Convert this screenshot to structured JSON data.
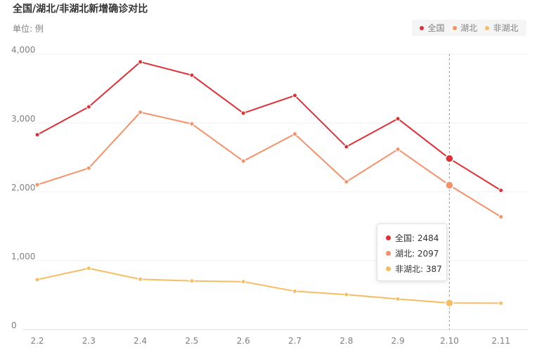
{
  "title": "全国/湖北/非湖北新增确诊对比",
  "unit_label": "单位: 例",
  "colors": {
    "national": "#e02f35",
    "hubei": "#f5926a",
    "non_hubei": "#f7bd63"
  },
  "tooltip": {
    "category": "2.10",
    "rows": [
      {
        "label": "全国: 2484"
      },
      {
        "label": "湖北: 2097"
      },
      {
        "label": "非湖北: 387"
      }
    ]
  },
  "chart_data": {
    "type": "line",
    "title": "全国/湖北/非湖北新增确诊对比",
    "ylabel": "单位: 例",
    "categories": [
      "2.2",
      "2.3",
      "2.4",
      "2.5",
      "2.6",
      "2.7",
      "2.8",
      "2.9",
      "2.10",
      "2.11"
    ],
    "ylim": [
      0,
      4000
    ],
    "yticks": [
      "0",
      "1,000",
      "2,000",
      "3,000",
      "4,000"
    ],
    "grid": true,
    "legend": "top-right",
    "series": [
      {
        "name": "全国",
        "color": "#e02f35",
        "values": [
          2829,
          3235,
          3887,
          3694,
          3143,
          3399,
          2656,
          3062,
          2484,
          2022
        ]
      },
      {
        "name": "湖北",
        "color": "#f5926a",
        "values": [
          2103,
          2345,
          3156,
          2987,
          2447,
          2841,
          2147,
          2618,
          2097,
          1638
        ]
      },
      {
        "name": "非湖北",
        "color": "#f7bd63",
        "values": [
          726,
          890,
          731,
          707,
          696,
          558,
          509,
          444,
          387,
          384
        ]
      }
    ]
  }
}
